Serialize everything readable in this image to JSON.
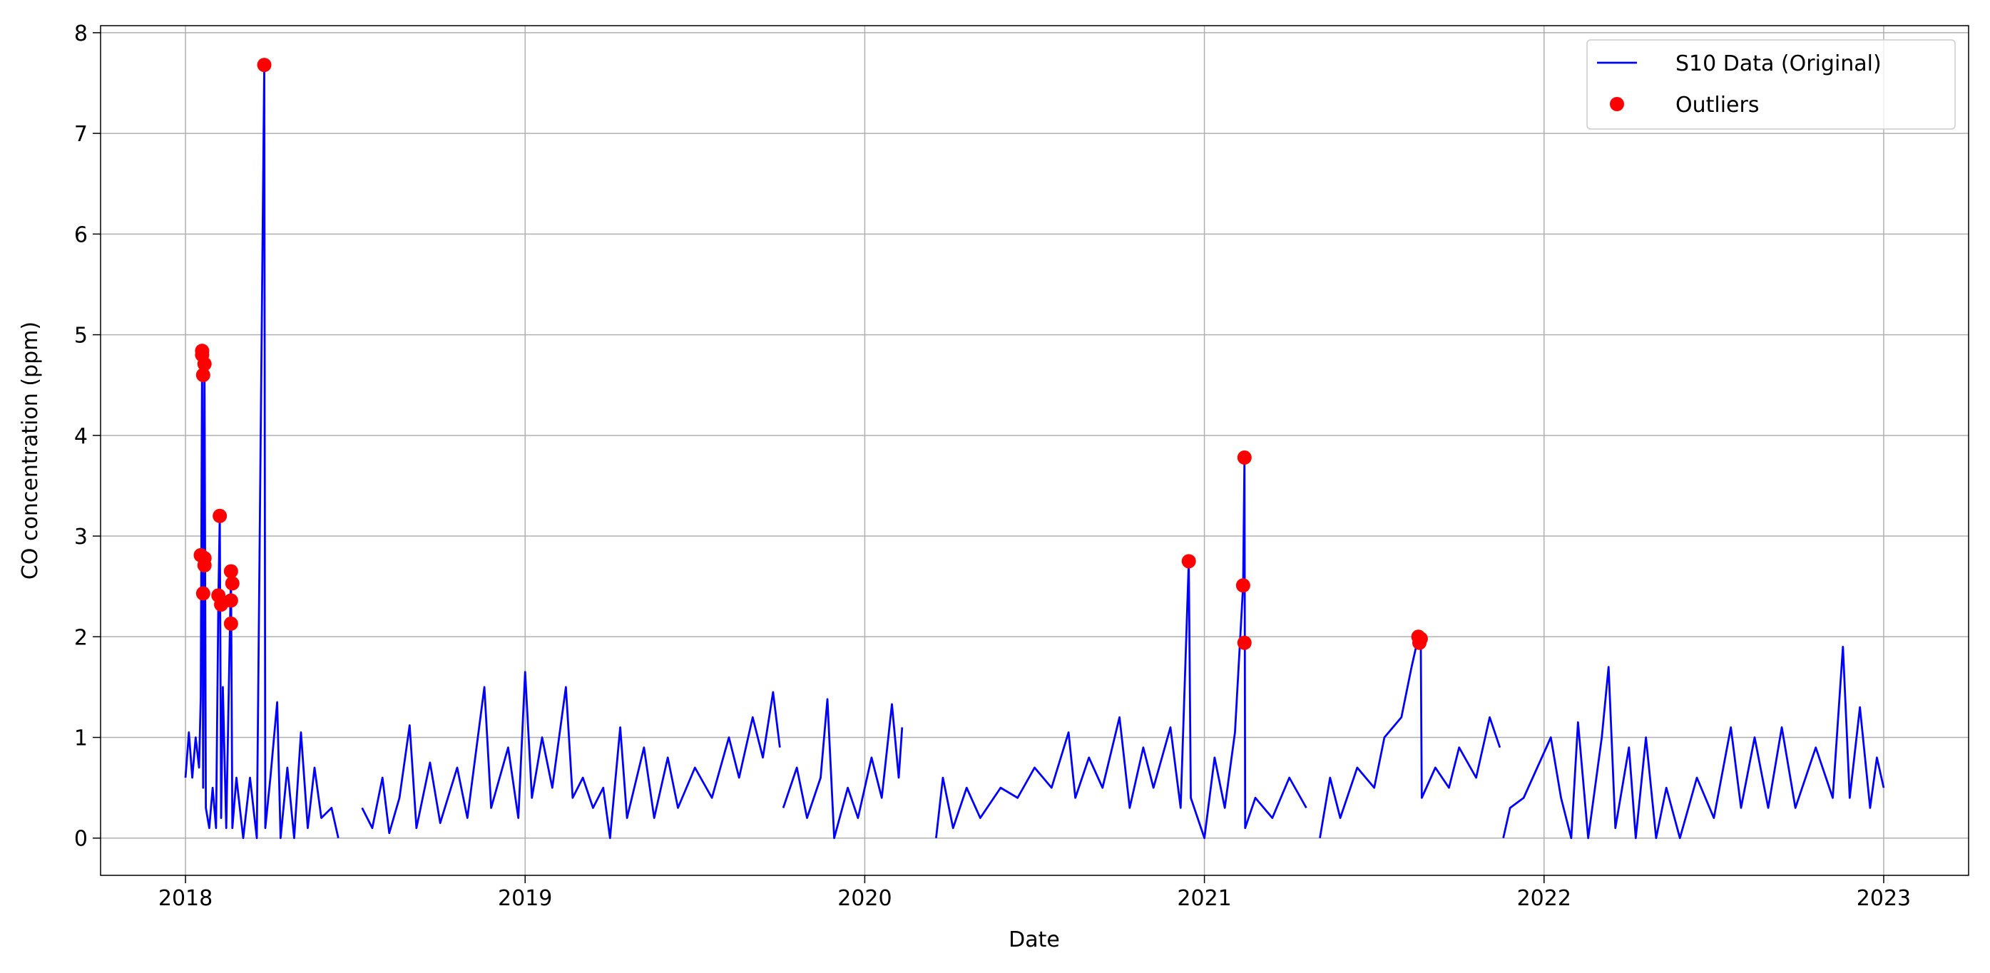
{
  "chart_data": {
    "type": "line",
    "xlabel": "Date",
    "ylabel": "CO concentration (ppm)",
    "xlim": [
      2017.75,
      2023.25
    ],
    "xticks": [
      2018,
      2019,
      2020,
      2021,
      2022,
      2023
    ],
    "ylim": [
      -0.37,
      8.07
    ],
    "yticks": [
      0,
      1,
      2,
      3,
      4,
      5,
      6,
      7,
      8
    ],
    "grid": true,
    "legend": "upper right",
    "series": [
      {
        "name": "S10 Data (Original)",
        "type": "line",
        "color": "#0000ff",
        "x": [
          2018.0,
          2018.01,
          2018.02,
          2018.03,
          2018.04,
          2018.045,
          2018.049,
          2018.052,
          2018.056,
          2018.06,
          2018.07,
          2018.08,
          2018.09,
          2018.097,
          2018.101,
          2018.105,
          2018.11,
          2018.12,
          2018.134,
          2018.138,
          2018.15,
          2018.17,
          2018.19,
          2018.21,
          2018.232,
          2018.235,
          2018.25,
          2018.27,
          2018.28,
          2018.3,
          2018.32,
          2018.34,
          2018.36,
          2018.38,
          2018.4,
          2018.43,
          2018.45,
          2018.5,
          2018.52,
          2018.55,
          2018.58,
          2018.6,
          2018.63,
          2018.66,
          2018.68,
          2018.72,
          2018.75,
          2018.8,
          2018.83,
          2018.88,
          2018.9,
          2018.95,
          2018.98,
          2019.0,
          2019.02,
          2019.05,
          2019.08,
          2019.12,
          2019.14,
          2019.17,
          2019.2,
          2019.23,
          2019.25,
          2019.28,
          2019.3,
          2019.35,
          2019.38,
          2019.42,
          2019.45,
          2019.5,
          2019.55,
          2019.6,
          2019.63,
          2019.67,
          2019.7,
          2019.73,
          2019.75,
          2019.755,
          2019.76,
          2019.8,
          2019.83,
          2019.87,
          2019.89,
          2019.91,
          2019.95,
          2019.98,
          2020.02,
          2020.05,
          2020.08,
          2020.1,
          2020.11,
          2020.16,
          2020.21,
          2020.23,
          2020.26,
          2020.3,
          2020.34,
          2020.4,
          2020.45,
          2020.5,
          2020.55,
          2020.6,
          2020.62,
          2020.66,
          2020.7,
          2020.75,
          2020.78,
          2020.82,
          2020.85,
          2020.9,
          2020.93,
          2020.954,
          2020.96,
          2021.0,
          2021.03,
          2021.06,
          2021.09,
          2021.114,
          2021.118,
          2021.12,
          2021.15,
          2021.2,
          2021.25,
          2021.3,
          2021.32,
          2021.34,
          2021.37,
          2021.4,
          2021.45,
          2021.5,
          2021.53,
          2021.58,
          2021.61,
          2021.63,
          2021.637,
          2021.64,
          2021.68,
          2021.72,
          2021.75,
          2021.8,
          2021.84,
          2021.87,
          2021.875,
          2021.88,
          2021.9,
          2021.94,
          2021.98,
          2022.02,
          2022.05,
          2022.08,
          2022.1,
          2022.13,
          2022.17,
          2022.19,
          2022.21,
          2022.25,
          2022.27,
          2022.3,
          2022.33,
          2022.36,
          2022.4,
          2022.45,
          2022.5,
          2022.55,
          2022.58,
          2022.62,
          2022.66,
          2022.7,
          2022.74,
          2022.8,
          2022.85,
          2022.88,
          2022.9,
          2022.93,
          2022.96,
          2022.98,
          2023.0
        ],
        "values": [
          0.6,
          1.05,
          0.6,
          1.0,
          0.7,
          1.4,
          4.84,
          0.5,
          4.71,
          0.3,
          0.1,
          0.5,
          0.1,
          2.41,
          3.2,
          0.2,
          1.5,
          0.1,
          2.65,
          0.1,
          0.6,
          0,
          0.6,
          0,
          7.68,
          0.1,
          0.6,
          1.35,
          0,
          0.7,
          0,
          1.05,
          0.1,
          0.7,
          0.2,
          0.3,
          0,
          null,
          0.3,
          0.1,
          0.6,
          0.05,
          0.4,
          1.12,
          0.1,
          0.75,
          0.15,
          0.7,
          0.2,
          1.5,
          0.3,
          0.9,
          0.2,
          1.65,
          0.4,
          1.0,
          0.5,
          1.5,
          0.4,
          0.6,
          0.3,
          0.5,
          0,
          1.1,
          0.2,
          0.9,
          0.2,
          0.8,
          0.3,
          0.7,
          0.4,
          1.0,
          0.6,
          1.2,
          0.8,
          1.45,
          0.9,
          null,
          0.3,
          0.7,
          0.2,
          0.6,
          1.38,
          0,
          0.5,
          0.2,
          0.8,
          0.4,
          1.33,
          0.6,
          1.1,
          null,
          0,
          0.6,
          0.1,
          0.5,
          0.2,
          0.5,
          0.4,
          0.7,
          0.5,
          1.05,
          0.4,
          0.8,
          0.5,
          1.2,
          0.3,
          0.9,
          0.5,
          1.1,
          0.3,
          2.75,
          0.4,
          0,
          0.8,
          0.3,
          1.05,
          2.51,
          3.78,
          0.1,
          0.4,
          0.2,
          0.6,
          0.3,
          null,
          0,
          0.6,
          0.2,
          0.7,
          0.5,
          1.0,
          1.2,
          1.7,
          2.0,
          1.98,
          0.4,
          0.7,
          0.5,
          0.9,
          0.6,
          1.2,
          0.9,
          null,
          0,
          0.3,
          0.4,
          0.7,
          1.0,
          0.4,
          0,
          1.15,
          0,
          1.0,
          1.7,
          0.1,
          0.9,
          0,
          1.0,
          0,
          0.5,
          0,
          0.6,
          0.2,
          1.1,
          0.3,
          1.0,
          0.3,
          1.1,
          0.3,
          0.9,
          0.4,
          1.9,
          0.4,
          1.3,
          0.3,
          0.8,
          0.5
        ]
      },
      {
        "name": "Outliers",
        "type": "scatter",
        "color": "#ff0000",
        "x": [
          2018.049,
          2018.049,
          2018.056,
          2018.052,
          2018.045,
          2018.056,
          2018.056,
          2018.052,
          2018.101,
          2018.097,
          2018.105,
          2018.134,
          2018.138,
          2018.134,
          2018.134,
          2018.232,
          2020.954,
          2021.118,
          2021.114,
          2021.118,
          2021.63,
          2021.637,
          2021.633
        ],
        "values": [
          4.8,
          4.84,
          4.71,
          4.6,
          2.81,
          2.78,
          2.71,
          2.43,
          3.2,
          2.41,
          2.32,
          2.65,
          2.53,
          2.36,
          2.13,
          7.68,
          2.75,
          3.78,
          2.51,
          1.94,
          2.0,
          1.98,
          1.94
        ]
      }
    ]
  }
}
